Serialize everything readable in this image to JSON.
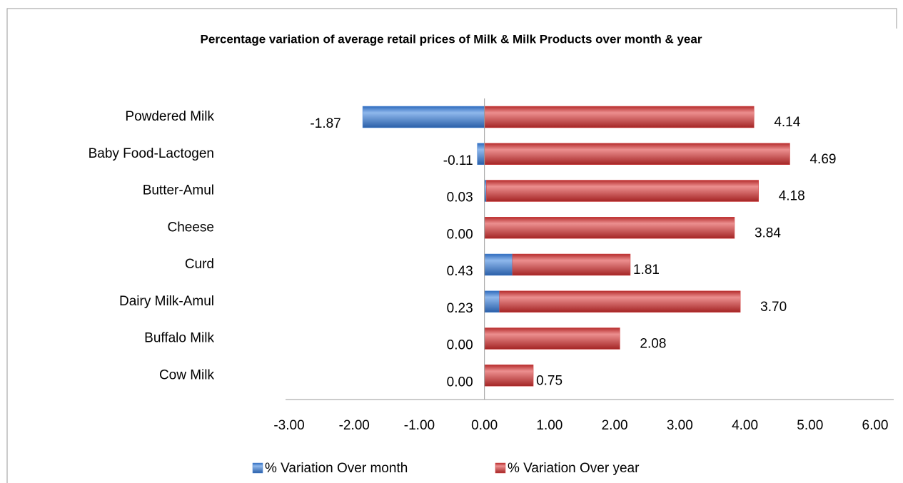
{
  "chart_data": {
    "type": "stacked-bar",
    "orientation": "horizontal",
    "title": "Percentage variation  of average retail prices of Milk & Milk Products over month & year",
    "categories": [
      "Powdered Milk",
      "Baby Food-Lactogen",
      "Butter-Amul",
      "Cheese",
      "Curd",
      "Dairy Milk-Amul",
      "Buffalo Milk",
      "Cow Milk"
    ],
    "series": [
      {
        "name": "% Variation Over month",
        "color": "#4a86d4",
        "values": [
          -1.87,
          -0.11,
          0.03,
          0.0,
          0.43,
          0.23,
          0.0,
          0.0
        ],
        "value_labels": [
          "-1.87",
          "-0.11",
          "0.03",
          "0.00",
          "0.43",
          "0.23",
          "0.00",
          "0.00"
        ]
      },
      {
        "name": "% Variation Over year",
        "color": "#d64545",
        "values": [
          4.14,
          4.69,
          4.18,
          3.84,
          1.81,
          3.7,
          2.08,
          0.75
        ],
        "value_labels": [
          "4.14",
          "4.69",
          "4.18",
          "3.84",
          "1.81",
          "3.70",
          "2.08",
          "0.75"
        ]
      }
    ],
    "xlim": [
      -3,
      6
    ],
    "xticks": [
      {
        "value": -3,
        "label": "-3.00"
      },
      {
        "value": -2,
        "label": "-2.00"
      },
      {
        "value": -1,
        "label": "-1.00"
      },
      {
        "value": 0,
        "label": "0.00"
      },
      {
        "value": 1,
        "label": "1.00"
      },
      {
        "value": 2,
        "label": "2.00"
      },
      {
        "value": 3,
        "label": "3.00"
      },
      {
        "value": 4,
        "label": "4.00"
      },
      {
        "value": 5,
        "label": "5.00"
      },
      {
        "value": 6,
        "label": "6.00"
      }
    ],
    "grid": false,
    "legend": "bottom"
  }
}
